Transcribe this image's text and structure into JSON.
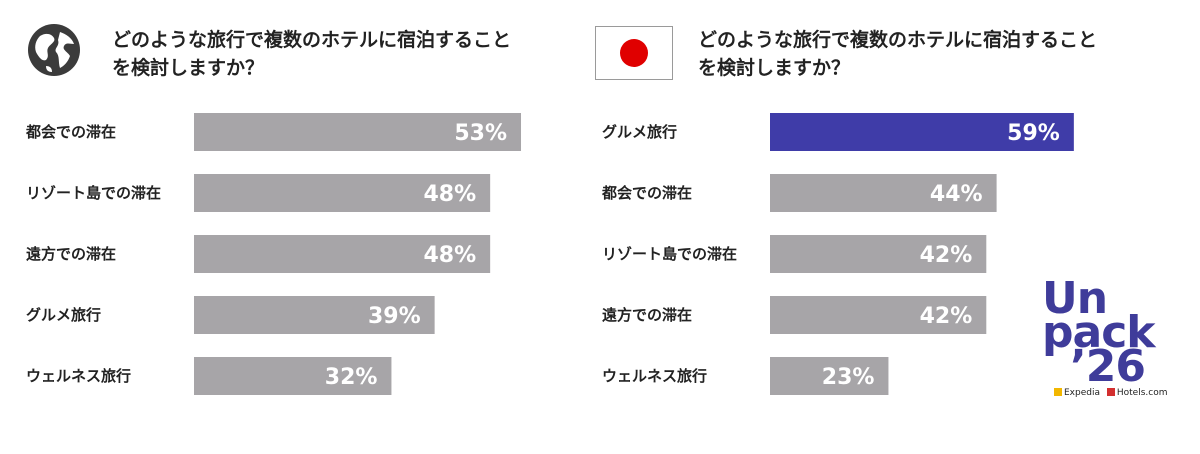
{
  "panels": [
    {
      "title_line1": "どのような旅行で複数のホテルに宿泊すること",
      "title_line2": "を検討しますか？",
      "icon": "globe-icon"
    },
    {
      "title_line1": "どのような旅行で複数のホテルに宿泊すること",
      "title_line2": "を検討しますか？",
      "icon": "japan-flag-icon"
    }
  ],
  "chart_data": [
    {
      "type": "bar",
      "orientation": "horizontal",
      "categories": [
        "都会での滞在",
        "リゾート島での滞在",
        "遠方での滞在",
        "グルメ旅行",
        "ウェルネス旅行"
      ],
      "values": [
        53,
        48,
        48,
        39,
        32
      ],
      "value_labels": [
        "53%",
        "48%",
        "48%",
        "39%",
        "32%"
      ],
      "colors": [
        "#a7a5a8",
        "#a7a5a8",
        "#a7a5a8",
        "#a7a5a8",
        "#a7a5a8"
      ],
      "xlim": [
        0,
        100
      ]
    },
    {
      "type": "bar",
      "orientation": "horizontal",
      "categories": [
        "グルメ旅行",
        "都会での滞在",
        "リゾート島での滞在",
        "遠方での滞在",
        "ウェルネス旅行"
      ],
      "values": [
        59,
        44,
        42,
        42,
        23
      ],
      "value_labels": [
        "59%",
        "44%",
        "42%",
        "42%",
        "23%"
      ],
      "colors": [
        "#3f3ca8",
        "#a7a5a8",
        "#a7a5a8",
        "#a7a5a8",
        "#a7a5a8"
      ],
      "xlim": [
        0,
        100
      ]
    }
  ],
  "logo": {
    "line1": "Un",
    "line2": "pack",
    "line3": "’26",
    "brand1": "Expedia",
    "brand2": "Hotels.com",
    "color": "#3f3c9a"
  }
}
